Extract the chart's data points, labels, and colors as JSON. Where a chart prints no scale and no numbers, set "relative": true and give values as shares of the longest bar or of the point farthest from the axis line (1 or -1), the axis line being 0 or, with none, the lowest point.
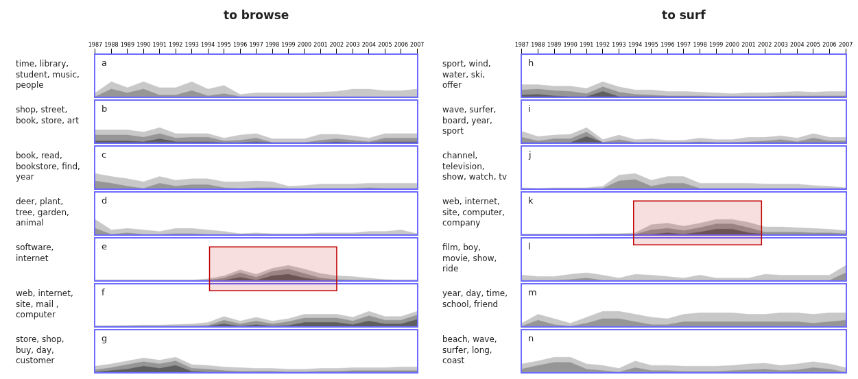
{
  "chart_data": [
    {
      "type": "area",
      "title": "to browse",
      "ylabel": "time, library, student, music, people",
      "annotations": [
        "a"
      ],
      "relative": true,
      "x": [
        1987,
        1988,
        1989,
        1990,
        1991,
        1992,
        1993,
        1994,
        1995,
        1996,
        1997,
        1998,
        1999,
        2000,
        2001,
        2002,
        2003,
        2004,
        2005,
        2006,
        2007
      ],
      "xlim": [
        1987,
        2007
      ],
      "xticks": [
        1987,
        1988,
        1989,
        1990,
        1991,
        1992,
        1993,
        1994,
        1995,
        1996,
        1997,
        1998,
        1999,
        2000,
        2001,
        2002,
        2003,
        2004,
        2005,
        2006,
        2007
      ],
      "tick_labels": "x",
      "series": [
        {
          "color": "#c8c8c8",
          "values": [
            0.25,
            1,
            0.6,
            1,
            0.6,
            0.6,
            1,
            0.5,
            0.75,
            0.15,
            0.25,
            0.25,
            0.25,
            0.25,
            0.3,
            0.35,
            0.5,
            0.5,
            0.4,
            0.4,
            0.5
          ]
        },
        {
          "color": "#969696",
          "values": [
            0,
            0.5,
            0.25,
            0.5,
            0.1,
            0.1,
            0.4,
            0.05,
            0.2,
            0,
            0,
            0,
            0,
            0,
            0,
            0,
            0,
            0,
            0,
            0,
            0
          ]
        }
      ]
    },
    {
      "type": "area",
      "ylabel": "shop, street, book, store, art",
      "annotations": [
        "b"
      ],
      "relative": true,
      "x": [
        1987,
        1988,
        1989,
        1990,
        1991,
        1992,
        1993,
        1994,
        1995,
        1996,
        1997,
        1998,
        1999,
        2000,
        2001,
        2002,
        2003,
        2004,
        2005,
        2006,
        2007
      ],
      "xlim": [
        1987,
        2007
      ],
      "tick_labels": false,
      "series": [
        {
          "color": "#c8c8c8",
          "values": [
            0.85,
            0.85,
            0.85,
            0.7,
            1,
            0.6,
            0.6,
            0.6,
            0.3,
            0.5,
            0.6,
            0.25,
            0.25,
            0.25,
            0.55,
            0.55,
            0.45,
            0.3,
            0.6,
            0.6,
            0.6
          ]
        },
        {
          "color": "#969696",
          "values": [
            0.5,
            0.5,
            0.5,
            0.35,
            0.6,
            0.3,
            0.35,
            0.35,
            0.1,
            0.15,
            0.3,
            0,
            0,
            0,
            0.15,
            0.25,
            0.15,
            0.05,
            0.3,
            0.3,
            0.3
          ]
        },
        {
          "color": "#5f5f5f",
          "values": [
            0.1,
            0.1,
            0.1,
            0.05,
            0.25,
            0.05,
            0.05,
            0.05,
            0,
            0,
            0.05,
            0,
            0,
            0,
            0,
            0.05,
            0,
            0,
            0.05,
            0.05,
            0.05
          ]
        }
      ]
    },
    {
      "type": "area",
      "ylabel": "book, read, bookstore, find, year",
      "annotations": [
        "c"
      ],
      "relative": true,
      "x": [
        1987,
        1988,
        1989,
        1990,
        1991,
        1992,
        1993,
        1994,
        1995,
        1996,
        1997,
        1998,
        1999,
        2000,
        2001,
        2002,
        2003,
        2004,
        2005,
        2006,
        2007
      ],
      "xlim": [
        1987,
        2007
      ],
      "tick_labels": false,
      "series": [
        {
          "color": "#c8c8c8",
          "values": [
            1,
            0.8,
            0.65,
            0.45,
            0.8,
            0.55,
            0.65,
            0.65,
            0.45,
            0.45,
            0.5,
            0.45,
            0.15,
            0.2,
            0.3,
            0.3,
            0.3,
            0.35,
            0.35,
            0.35,
            0.35
          ]
        },
        {
          "color": "#969696",
          "values": [
            0.5,
            0.35,
            0.15,
            0,
            0.35,
            0.15,
            0.25,
            0.25,
            0.05,
            0,
            0.05,
            0.05,
            0,
            0,
            0,
            0,
            0,
            0.05,
            0,
            0,
            0
          ]
        }
      ]
    },
    {
      "type": "area",
      "ylabel": "deer, plant, tree, garden, animal",
      "annotations": [
        "d"
      ],
      "relative": true,
      "x": [
        1987,
        1988,
        1989,
        1990,
        1991,
        1992,
        1993,
        1994,
        1995,
        1996,
        1997,
        1998,
        1999,
        2000,
        2001,
        2002,
        2003,
        2004,
        2005,
        2006,
        2007
      ],
      "xlim": [
        1987,
        2007
      ],
      "tick_labels": false,
      "series": [
        {
          "color": "#c8c8c8",
          "values": [
            1,
            0.3,
            0.4,
            0.3,
            0.2,
            0.4,
            0.4,
            0.3,
            0.2,
            0.05,
            0.1,
            0.05,
            0.05,
            0.05,
            0.1,
            0.1,
            0.1,
            0.2,
            0.2,
            0.3,
            0.05
          ]
        },
        {
          "color": "#969696",
          "values": [
            0.4,
            0,
            0.1,
            0,
            0,
            0.05,
            0.05,
            0,
            0,
            0,
            0,
            0,
            0,
            0,
            0,
            0,
            0,
            0,
            0,
            0,
            0
          ]
        }
      ]
    },
    {
      "type": "area",
      "ylabel": "software, internet",
      "annotations": [
        "e"
      ],
      "relative": true,
      "x": [
        1987,
        1988,
        1989,
        1990,
        1991,
        1992,
        1993,
        1994,
        1995,
        1996,
        1997,
        1998,
        1999,
        2000,
        2001,
        2002,
        2003,
        2004,
        2005,
        2006,
        2007
      ],
      "xlim": [
        1987,
        2007
      ],
      "tick_labels": false,
      "bands": [
        {
          "axis": "x",
          "from": 1994.1,
          "to": 2002.0,
          "color": "#c00000"
        }
      ],
      "series": [
        {
          "color": "#c8c8c8",
          "values": [
            0,
            0,
            0,
            0,
            0,
            0,
            0,
            0.1,
            0.3,
            0.7,
            0.4,
            0.8,
            1,
            0.75,
            0.45,
            0.3,
            0.25,
            0.15,
            0.05,
            0,
            0
          ]
        },
        {
          "color": "#969696",
          "values": [
            0,
            0,
            0,
            0,
            0,
            0,
            0,
            0,
            0.15,
            0.5,
            0.2,
            0.6,
            0.75,
            0.45,
            0.15,
            0.05,
            0,
            0,
            0,
            0,
            0
          ]
        },
        {
          "color": "#5f5f5f",
          "values": [
            0,
            0,
            0,
            0,
            0,
            0,
            0,
            0,
            0,
            0.2,
            0,
            0.3,
            0.4,
            0.15,
            0,
            0,
            0,
            0,
            0,
            0,
            0
          ]
        }
      ]
    },
    {
      "type": "area",
      "ylabel": "web, internet, site, mail , computer",
      "annotations": [
        "f"
      ],
      "relative": true,
      "x": [
        1987,
        1988,
        1989,
        1990,
        1991,
        1992,
        1993,
        1994,
        1995,
        1996,
        1997,
        1998,
        1999,
        2000,
        2001,
        2002,
        2003,
        2004,
        2005,
        2006,
        2007
      ],
      "xlim": [
        1987,
        2007
      ],
      "tick_labels": false,
      "series": [
        {
          "color": "#c8c8c8",
          "values": [
            0,
            0.02,
            0.05,
            0.08,
            0.08,
            0.12,
            0.15,
            0.25,
            0.65,
            0.35,
            0.6,
            0.35,
            0.5,
            0.8,
            0.8,
            0.8,
            0.6,
            1,
            0.65,
            0.65,
            1
          ]
        },
        {
          "color": "#969696",
          "values": [
            0,
            0,
            0,
            0,
            0,
            0,
            0,
            0.05,
            0.4,
            0.15,
            0.35,
            0.15,
            0.3,
            0.55,
            0.55,
            0.55,
            0.35,
            0.7,
            0.4,
            0.4,
            0.75
          ]
        },
        {
          "color": "#5f5f5f",
          "values": [
            0,
            0,
            0,
            0,
            0,
            0,
            0,
            0,
            0.15,
            0,
            0.1,
            0,
            0.05,
            0.25,
            0.25,
            0.25,
            0.1,
            0.35,
            0.15,
            0.15,
            0.45
          ]
        }
      ]
    },
    {
      "type": "area",
      "ylabel": "store, shop, buy, day, customer",
      "annotations": [
        "g"
      ],
      "relative": true,
      "x": [
        1987,
        1988,
        1989,
        1990,
        1991,
        1992,
        1993,
        1994,
        1995,
        1996,
        1997,
        1998,
        1999,
        2000,
        2001,
        2002,
        2003,
        2004,
        2005,
        2006,
        2007
      ],
      "xlim": [
        1987,
        2007
      ],
      "tick_labels": false,
      "series": [
        {
          "color": "#c8c8c8",
          "values": [
            0.4,
            0.55,
            0.75,
            0.95,
            0.8,
            1,
            0.5,
            0.45,
            0.35,
            0.3,
            0.25,
            0.25,
            0.2,
            0.2,
            0.25,
            0.25,
            0.3,
            0.3,
            0.3,
            0.35,
            0.35
          ]
        },
        {
          "color": "#969696",
          "values": [
            0.15,
            0.3,
            0.5,
            0.7,
            0.55,
            0.75,
            0.25,
            0.2,
            0.1,
            0.05,
            0.05,
            0.05,
            0,
            0,
            0.05,
            0.05,
            0.1,
            0.1,
            0.1,
            0.1,
            0.1
          ]
        },
        {
          "color": "#5f5f5f",
          "values": [
            0,
            0.1,
            0.2,
            0.4,
            0.25,
            0.45,
            0.05,
            0,
            0,
            0,
            0,
            0,
            0,
            0,
            0,
            0,
            0,
            0,
            0,
            0,
            0
          ]
        }
      ]
    },
    {
      "type": "area",
      "title": "to surf",
      "ylabel": "sport, wind, water, ski, offer",
      "annotations": [
        "h"
      ],
      "relative": true,
      "x": [
        1987,
        1988,
        1989,
        1990,
        1991,
        1992,
        1993,
        1994,
        1995,
        1996,
        1997,
        1998,
        1999,
        2000,
        2001,
        2002,
        2003,
        2004,
        2005,
        2006,
        2007
      ],
      "xlim": [
        1987,
        2007
      ],
      "xticks": [
        1987,
        1988,
        1989,
        1990,
        1991,
        1992,
        1993,
        1994,
        1995,
        1996,
        1997,
        1998,
        1999,
        2000,
        2001,
        2002,
        2003,
        2004,
        2005,
        2006,
        2007
      ],
      "tick_labels": "x",
      "series": [
        {
          "color": "#c8c8c8",
          "values": [
            0.8,
            0.8,
            0.7,
            0.7,
            0.55,
            1,
            0.65,
            0.45,
            0.45,
            0.35,
            0.35,
            0.3,
            0.25,
            0.2,
            0.25,
            0.25,
            0.3,
            0.35,
            0.3,
            0.35,
            0.35
          ]
        },
        {
          "color": "#969696",
          "values": [
            0.45,
            0.5,
            0.4,
            0.35,
            0.2,
            0.65,
            0.3,
            0.15,
            0.1,
            0.05,
            0.05,
            0.05,
            0,
            0,
            0,
            0,
            0.05,
            0.05,
            0.05,
            0.05,
            0.05
          ]
        },
        {
          "color": "#5f5f5f",
          "values": [
            0.1,
            0.15,
            0.05,
            0,
            0,
            0.35,
            0,
            0,
            0,
            0,
            0,
            0,
            0,
            0,
            0,
            0,
            0,
            0,
            0,
            0,
            0
          ]
        }
      ]
    },
    {
      "type": "area",
      "ylabel": "wave, surfer, board, year, sport",
      "annotations": [
        "i"
      ],
      "relative": true,
      "x": [
        1987,
        1988,
        1989,
        1990,
        1991,
        1992,
        1993,
        1994,
        1995,
        1996,
        1997,
        1998,
        1999,
        2000,
        2001,
        2002,
        2003,
        2004,
        2005,
        2006,
        2007
      ],
      "xlim": [
        1987,
        2007
      ],
      "tick_labels": false,
      "series": [
        {
          "color": "#c8c8c8",
          "values": [
            0.75,
            0.4,
            0.5,
            0.55,
            1,
            0.2,
            0.5,
            0.2,
            0.25,
            0.15,
            0.15,
            0.3,
            0.2,
            0.2,
            0.35,
            0.35,
            0.45,
            0.3,
            0.6,
            0.35,
            0.35
          ]
        },
        {
          "color": "#969696",
          "values": [
            0.35,
            0.1,
            0.25,
            0.25,
            0.7,
            0,
            0.2,
            0,
            0,
            0,
            0,
            0.05,
            0,
            0,
            0.05,
            0.1,
            0.2,
            0.05,
            0.3,
            0.1,
            0.1
          ]
        },
        {
          "color": "#5f5f5f",
          "values": [
            0,
            0,
            0,
            0,
            0.4,
            0,
            0,
            0,
            0,
            0,
            0,
            0,
            0,
            0,
            0,
            0,
            0,
            0,
            0,
            0,
            0
          ]
        }
      ]
    },
    {
      "type": "area",
      "ylabel": "channel, television, show, watch, tv",
      "annotations": [
        "j"
      ],
      "relative": true,
      "x": [
        1987,
        1988,
        1989,
        1990,
        1991,
        1992,
        1993,
        1994,
        1995,
        1996,
        1997,
        1998,
        1999,
        2000,
        2001,
        2002,
        2003,
        2004,
        2005,
        2006,
        2007
      ],
      "xlim": [
        1987,
        2007
      ],
      "tick_labels": false,
      "series": [
        {
          "color": "#c8c8c8",
          "values": [
            0.05,
            0,
            0.05,
            0.05,
            0.05,
            0.15,
            0.9,
            1,
            0.55,
            0.8,
            0.8,
            0.35,
            0.35,
            0.35,
            0.35,
            0.3,
            0.3,
            0.3,
            0.2,
            0.15,
            0.05
          ]
        },
        {
          "color": "#969696",
          "values": [
            0,
            0,
            0,
            0,
            0,
            0,
            0.5,
            0.6,
            0.15,
            0.35,
            0.35,
            0,
            0,
            0,
            0,
            0,
            0,
            0,
            0,
            0,
            0
          ]
        }
      ]
    },
    {
      "type": "area",
      "ylabel": "web, internet, site, computer, company",
      "annotations": [
        "k"
      ],
      "relative": true,
      "x": [
        1987,
        1988,
        1989,
        1990,
        1991,
        1992,
        1993,
        1994,
        1995,
        1996,
        1997,
        1998,
        1999,
        2000,
        2001,
        2002,
        2003,
        2004,
        2005,
        2006,
        2007
      ],
      "xlim": [
        1987,
        2007
      ],
      "tick_labels": false,
      "bands": [
        {
          "axis": "x",
          "from": 1993.9,
          "to": 2001.8,
          "color": "#c00000"
        }
      ],
      "series": [
        {
          "color": "#c8c8c8",
          "values": [
            0,
            0,
            0,
            0,
            0,
            0.05,
            0.05,
            0.1,
            0.65,
            0.75,
            0.55,
            0.75,
            1,
            1,
            0.8,
            0.5,
            0.5,
            0.45,
            0.4,
            0.35,
            0.25
          ]
        },
        {
          "color": "#969696",
          "values": [
            0,
            0,
            0,
            0,
            0,
            0,
            0,
            0,
            0.3,
            0.4,
            0.25,
            0.45,
            0.7,
            0.7,
            0.45,
            0.15,
            0.15,
            0.15,
            0.1,
            0.1,
            0.05
          ]
        },
        {
          "color": "#5f5f5f",
          "values": [
            0,
            0,
            0,
            0,
            0,
            0,
            0,
            0,
            0,
            0.1,
            0,
            0.15,
            0.35,
            0.35,
            0.1,
            0,
            0,
            0,
            0,
            0,
            0
          ]
        }
      ]
    },
    {
      "type": "area",
      "ylabel": "film, boy, movie, show, ride",
      "annotations": [
        "l"
      ],
      "relative": true,
      "x": [
        1987,
        1988,
        1989,
        1990,
        1991,
        1992,
        1993,
        1994,
        1995,
        1996,
        1997,
        1998,
        1999,
        2000,
        2001,
        2002,
        2003,
        2004,
        2005,
        2006,
        2007
      ],
      "xlim": [
        1987,
        2007
      ],
      "tick_labels": false,
      "series": [
        {
          "color": "#c8c8c8",
          "values": [
            0.35,
            0.25,
            0.25,
            0.4,
            0.5,
            0.35,
            0.15,
            0.4,
            0.35,
            0.25,
            0.15,
            0.35,
            0.15,
            0.15,
            0.15,
            0.4,
            0.35,
            0.35,
            0.35,
            0.35,
            1
          ]
        },
        {
          "color": "#969696",
          "values": [
            0,
            0,
            0,
            0.05,
            0.15,
            0,
            0,
            0,
            0,
            0,
            0,
            0,
            0,
            0,
            0,
            0,
            0,
            0,
            0,
            0,
            0.5
          ]
        }
      ]
    },
    {
      "type": "area",
      "ylabel": "year, day, time, school, friend",
      "annotations": [
        "m"
      ],
      "relative": true,
      "x": [
        1987,
        1988,
        1989,
        1990,
        1991,
        1992,
        1993,
        1994,
        1995,
        1996,
        1997,
        1998,
        1999,
        2000,
        2001,
        2002,
        2003,
        2004,
        2005,
        2006,
        2007
      ],
      "xlim": [
        1987,
        2007
      ],
      "tick_labels": false,
      "series": [
        {
          "color": "#c8c8c8",
          "values": [
            0.2,
            0.8,
            0.5,
            0.2,
            0.6,
            1,
            1,
            0.8,
            0.6,
            0.5,
            0.8,
            0.9,
            0.9,
            0.9,
            0.8,
            0.8,
            0.9,
            0.9,
            0.8,
            0.9,
            0.9
          ]
        },
        {
          "color": "#969696",
          "values": [
            0,
            0.4,
            0.1,
            0,
            0.2,
            0.5,
            0.5,
            0.3,
            0.1,
            0.1,
            0.3,
            0.3,
            0.3,
            0.3,
            0.3,
            0.3,
            0.3,
            0.3,
            0.2,
            0.3,
            0.4
          ]
        }
      ]
    },
    {
      "type": "area",
      "ylabel": "beach, wave, surfer, long, coast",
      "annotations": [
        "n"
      ],
      "relative": true,
      "x": [
        1987,
        1988,
        1989,
        1990,
        1991,
        1992,
        1993,
        1994,
        1995,
        1996,
        1997,
        1998,
        1999,
        2000,
        2001,
        2002,
        2003,
        2004,
        2005,
        2006,
        2007
      ],
      "xlim": [
        1987,
        2007
      ],
      "tick_labels": false,
      "series": [
        {
          "color": "#c8c8c8",
          "values": [
            0.55,
            0.75,
            1,
            1,
            0.55,
            0.45,
            0.25,
            0.75,
            0.45,
            0.45,
            0.4,
            0.4,
            0.4,
            0.45,
            0.55,
            0.6,
            0.45,
            0.55,
            0.7,
            0.55,
            0.3
          ]
        },
        {
          "color": "#969696",
          "values": [
            0.2,
            0.45,
            0.65,
            0.65,
            0.2,
            0.1,
            0,
            0.3,
            0.1,
            0.1,
            0.05,
            0.05,
            0.05,
            0.1,
            0.15,
            0.2,
            0.1,
            0.15,
            0.3,
            0.2,
            0
          ]
        }
      ]
    }
  ]
}
